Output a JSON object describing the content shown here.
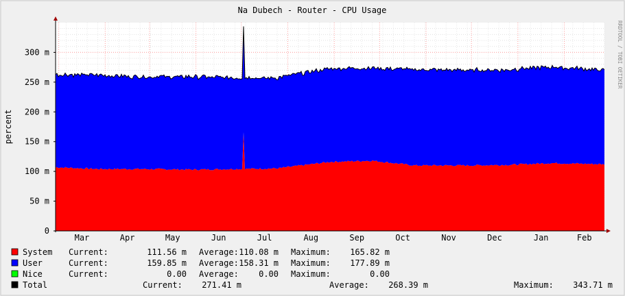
{
  "title": "Na Dubech - Router - CPU Usage",
  "watermark": "RRDTOOL / TOBI OETIKER",
  "chart_data": {
    "type": "area",
    "title": "Na Dubech - Router - CPU Usage",
    "ylabel": "percent",
    "ylim": [
      0,
      0.35
    ],
    "yticks": [
      {
        "value": 0,
        "label": "0"
      },
      {
        "value": 0.05,
        "label": "50 m"
      },
      {
        "value": 0.1,
        "label": "100 m"
      },
      {
        "value": 0.15,
        "label": "150 m"
      },
      {
        "value": 0.2,
        "label": "200 m"
      },
      {
        "value": 0.25,
        "label": "250 m"
      },
      {
        "value": 0.3,
        "label": "300 m"
      }
    ],
    "months": [
      "Mar",
      "Apr",
      "May",
      "Jun",
      "Jul",
      "Aug",
      "Sep",
      "Oct",
      "Nov",
      "Dec",
      "Jan",
      "Feb"
    ],
    "stacked": true,
    "x": [
      0,
      4,
      8,
      13,
      17,
      21,
      26,
      30,
      34,
      39,
      43,
      47,
      52
    ],
    "series": [
      {
        "name": "System",
        "color": "#ff0000",
        "values": [
          0.107,
          0.104,
          0.104,
          0.103,
          0.104,
          0.105,
          0.116,
          0.118,
          0.11,
          0.11,
          0.111,
          0.114,
          0.112
        ]
      },
      {
        "name": "User",
        "color": "#0000ff",
        "values": [
          0.156,
          0.158,
          0.155,
          0.156,
          0.154,
          0.152,
          0.157,
          0.156,
          0.161,
          0.16,
          0.16,
          0.162,
          0.158
        ]
      },
      {
        "name": "Nice",
        "color": "#00ff00",
        "values": [
          0,
          0,
          0,
          0,
          0,
          0,
          0,
          0,
          0,
          0,
          0,
          0,
          0
        ]
      }
    ],
    "total": {
      "name": "Total",
      "color": "#000000"
    },
    "spikes": [
      {
        "x": 17.8,
        "total": 0.3437,
        "system": 0.1658
      }
    ],
    "legend": [
      {
        "name": "System",
        "color": "#ff0000",
        "current": "111.56 m",
        "average": "110.08 m",
        "maximum": "165.82 m"
      },
      {
        "name": "User",
        "color": "#0000ff",
        "current": "159.85 m",
        "average": "158.31 m",
        "maximum": "177.89 m"
      },
      {
        "name": "Nice",
        "color": "#00ff00",
        "current": "0.00",
        "average": "0.00",
        "maximum": "0.00"
      },
      {
        "name": "Total",
        "color": "#000000",
        "current": "271.41 m",
        "average": "268.39 m",
        "maximum": "343.71 m"
      }
    ],
    "legend_labels": {
      "current": "Current:",
      "average": "Average:",
      "maximum": "Maximum:"
    },
    "grid": true
  }
}
